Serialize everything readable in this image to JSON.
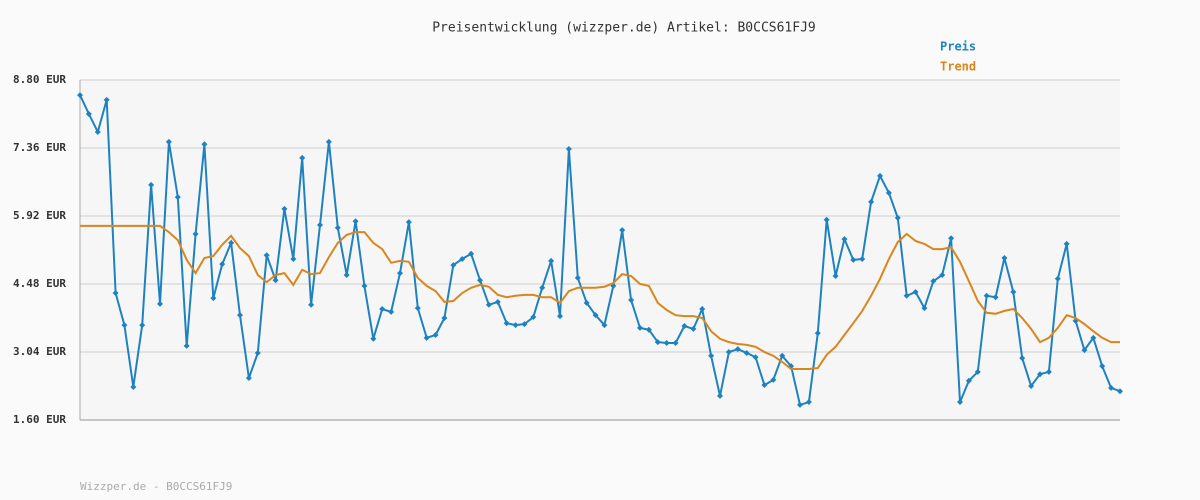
{
  "chart_data": {
    "type": "line",
    "title": "Preisentwicklung (wizzper.de) Artikel: B0CCS61FJ9",
    "footer": "Wizzper.de - B0CCS61FJ9",
    "ylim": [
      1.6,
      8.8
    ],
    "yticks": [
      {
        "value": 1.6,
        "label": "1.60 EUR"
      },
      {
        "value": 3.04,
        "label": "3.04 EUR"
      },
      {
        "value": 4.48,
        "label": "4.48 EUR"
      },
      {
        "value": 5.92,
        "label": "5.92 EUR"
      },
      {
        "value": 7.36,
        "label": "7.36 EUR"
      },
      {
        "value": 8.8,
        "label": "8.80 EUR"
      }
    ],
    "grid": true,
    "legend": "top-right",
    "series": [
      {
        "name": "Preis",
        "color": "#1f82c0",
        "markers": true,
        "values": [
          8.48,
          8.08,
          7.7,
          8.38,
          4.29,
          3.61,
          2.3,
          3.61,
          6.58,
          4.06,
          7.49,
          6.32,
          3.17,
          5.54,
          7.44,
          4.18,
          4.9,
          5.35,
          3.82,
          2.49,
          3.02,
          5.09,
          4.56,
          6.07,
          5.01,
          7.15,
          4.04,
          5.73,
          7.49,
          5.67,
          4.67,
          5.81,
          4.44,
          3.32,
          3.95,
          3.89,
          4.71,
          5.79,
          3.97,
          3.34,
          3.4,
          3.76,
          4.88,
          5.01,
          5.12,
          4.56,
          4.04,
          4.1,
          3.65,
          3.61,
          3.63,
          3.78,
          4.4,
          4.97,
          3.8,
          7.34,
          4.61,
          4.08,
          3.82,
          3.61,
          4.44,
          5.62,
          4.14,
          3.55,
          3.51,
          3.25,
          3.23,
          3.23,
          3.59,
          3.53,
          3.95,
          2.96,
          2.11,
          3.04,
          3.1,
          3.02,
          2.93,
          2.34,
          2.45,
          2.96,
          2.74,
          1.92,
          1.98,
          3.44,
          5.84,
          4.65,
          5.43,
          4.99,
          5.01,
          6.22,
          6.77,
          6.41,
          5.88,
          4.23,
          4.31,
          3.97,
          4.54,
          4.67,
          5.45,
          1.98,
          2.43,
          2.62,
          4.23,
          4.2,
          5.03,
          4.31,
          2.91,
          2.32,
          2.57,
          2.62,
          4.59,
          5.33,
          3.7,
          3.08,
          3.34,
          2.74,
          2.28,
          2.21
        ]
      },
      {
        "name": "Trend",
        "color": "#d9861c",
        "markers": false,
        "values": [
          5.71,
          5.71,
          5.71,
          5.71,
          5.71,
          5.71,
          5.71,
          5.71,
          5.71,
          5.71,
          5.58,
          5.41,
          4.99,
          4.71,
          5.03,
          5.07,
          5.31,
          5.5,
          5.24,
          5.07,
          4.67,
          4.52,
          4.67,
          4.71,
          4.46,
          4.78,
          4.69,
          4.71,
          5.05,
          5.35,
          5.52,
          5.58,
          5.58,
          5.35,
          5.22,
          4.93,
          4.97,
          4.95,
          4.61,
          4.44,
          4.33,
          4.1,
          4.12,
          4.29,
          4.4,
          4.46,
          4.42,
          4.25,
          4.2,
          4.23,
          4.25,
          4.25,
          4.2,
          4.2,
          4.08,
          4.33,
          4.4,
          4.4,
          4.4,
          4.42,
          4.5,
          4.69,
          4.65,
          4.48,
          4.44,
          4.08,
          3.93,
          3.82,
          3.8,
          3.8,
          3.76,
          3.48,
          3.32,
          3.25,
          3.21,
          3.19,
          3.15,
          3.04,
          2.96,
          2.83,
          2.68,
          2.68,
          2.68,
          2.7,
          2.98,
          3.15,
          3.4,
          3.65,
          3.91,
          4.23,
          4.59,
          5.01,
          5.37,
          5.54,
          5.39,
          5.33,
          5.22,
          5.22,
          5.26,
          4.95,
          4.54,
          4.12,
          3.87,
          3.85,
          3.91,
          3.95,
          3.76,
          3.53,
          3.25,
          3.34,
          3.55,
          3.82,
          3.76,
          3.63,
          3.48,
          3.34,
          3.25,
          3.25
        ]
      }
    ]
  }
}
